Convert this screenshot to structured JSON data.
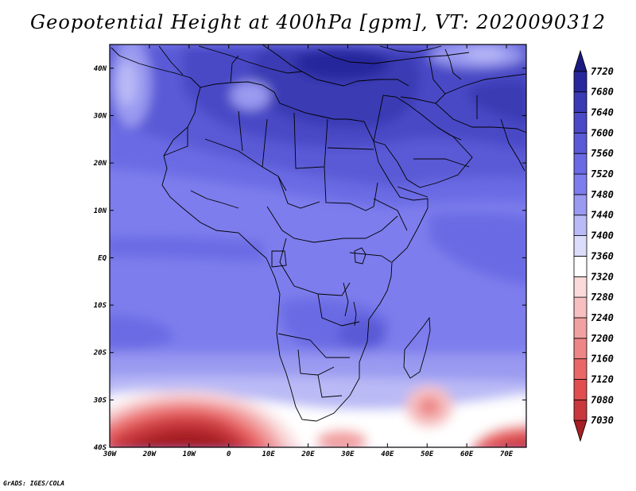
{
  "title": "Geopotential Height at 400hPa [gpm], VT: 2020090312",
  "credit": "GrADS: IGES/COLA",
  "map": {
    "projection": "latlon",
    "lon_range": [
      -30,
      75
    ],
    "lat_range": [
      -40,
      45
    ],
    "lon_ticks": [
      {
        "value": -30,
        "label": "30W"
      },
      {
        "value": -20,
        "label": "20W"
      },
      {
        "value": -10,
        "label": "10W"
      },
      {
        "value": 0,
        "label": "0"
      },
      {
        "value": 10,
        "label": "10E"
      },
      {
        "value": 20,
        "label": "20E"
      },
      {
        "value": 30,
        "label": "30E"
      },
      {
        "value": 40,
        "label": "40E"
      },
      {
        "value": 50,
        "label": "50E"
      },
      {
        "value": 60,
        "label": "60E"
      },
      {
        "value": 70,
        "label": "70E"
      }
    ],
    "lat_ticks": [
      {
        "value": 40,
        "label": "40N"
      },
      {
        "value": 30,
        "label": "30N"
      },
      {
        "value": 20,
        "label": "20N"
      },
      {
        "value": 10,
        "label": "10N"
      },
      {
        "value": 0,
        "label": "EQ"
      },
      {
        "value": -10,
        "label": "10S"
      },
      {
        "value": -20,
        "label": "20S"
      },
      {
        "value": -30,
        "label": "30S"
      },
      {
        "value": -40,
        "label": "40S"
      }
    ],
    "colorbar": {
      "levels": [
        7030,
        7080,
        7120,
        7160,
        7200,
        7240,
        7280,
        7320,
        7360,
        7400,
        7440,
        7480,
        7520,
        7560,
        7600,
        7640,
        7680,
        7720
      ],
      "colors": [
        "#a51f24",
        "#c8383c",
        "#e04e50",
        "#ea6768",
        "#ee8586",
        "#f2a1a2",
        "#f6bfc0",
        "#fadadb",
        "#ffffff",
        "#dcdcfb",
        "#babaf6",
        "#9a9af1",
        "#7d7ded",
        "#6a6ae4",
        "#5a5ad6",
        "#4a4ac6",
        "#3a3ab4",
        "#28289c",
        "#1a1a80"
      ]
    }
  }
}
